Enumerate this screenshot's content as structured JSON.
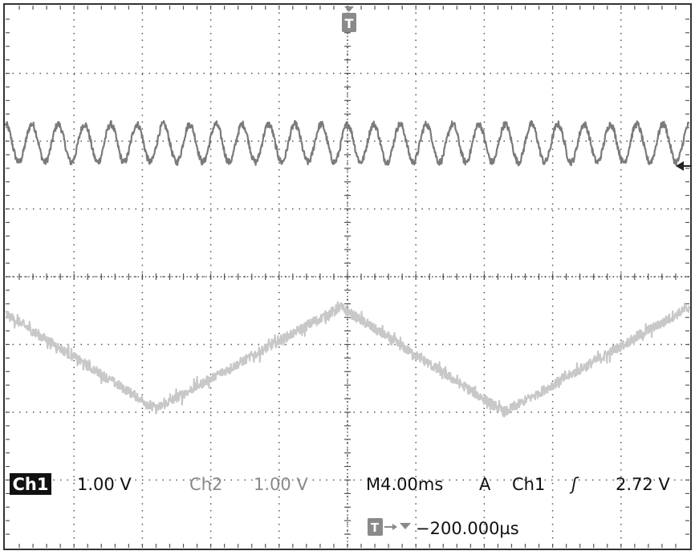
{
  "chart_data": {
    "type": "line",
    "grid": true,
    "divisions": {
      "horizontal": 10,
      "vertical": 8
    },
    "trigger_marker": "T",
    "series": [
      {
        "channel": "Ch1",
        "color": "#7a7a7a",
        "volts_per_div": "1.00 V",
        "waveform": "sine",
        "cycles_on_screen": 26,
        "amplitude_div": 0.28,
        "offset_div": 1.97,
        "phase_deg": 90,
        "noise_div": 0.05
      },
      {
        "channel": "Ch2",
        "color": "#c8c8c8",
        "volts_per_div": "1.00 V",
        "waveform": "triangle",
        "samples": [
          {
            "t": 0.0,
            "v": -0.55
          },
          {
            "t": 2.2,
            "v": -1.95
          },
          {
            "t": 4.9,
            "v": -0.45
          },
          {
            "t": 7.3,
            "v": -2.0
          },
          {
            "t": 10.0,
            "v": -0.45
          }
        ],
        "noise_div": 0.07
      }
    ]
  },
  "status": {
    "ch1_label": "Ch1",
    "ch1_scale": "1.00 V",
    "ch2_label": "Ch2",
    "ch2_scale": "1.00 V",
    "timebase": "M4.00ms",
    "acquire_mode": "A",
    "trigger_source": "Ch1",
    "trigger_slope_symbol": "ʃ",
    "trigger_level": "2.72 V",
    "trigger_offset": "−200.000µs"
  }
}
